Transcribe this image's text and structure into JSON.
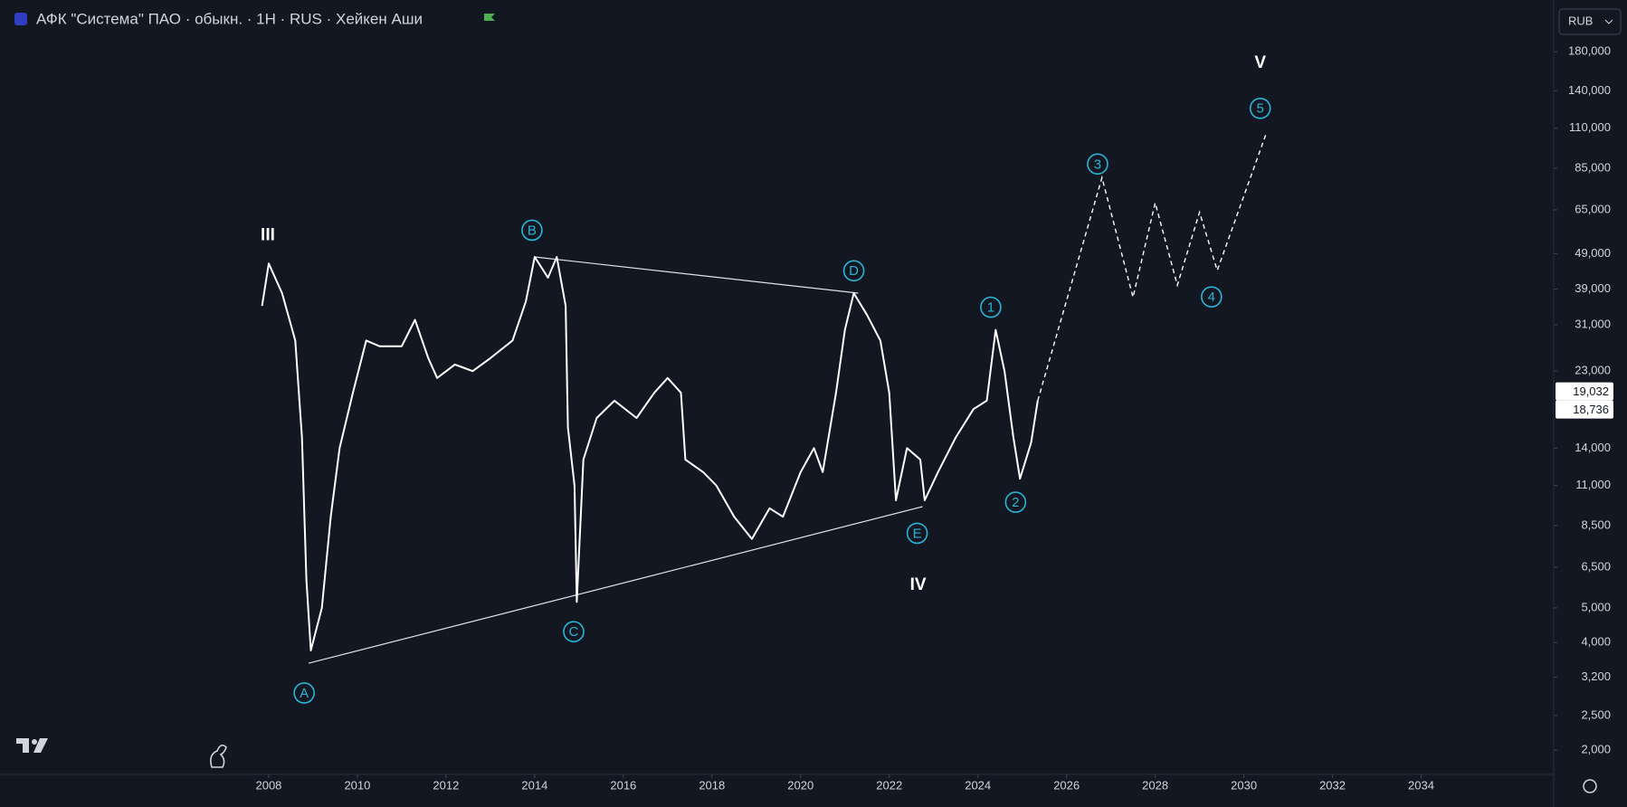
{
  "chart_data": {
    "type": "line",
    "title": "АФК \"Система\" ПАО · обыкн. · 1H · RUS · Хейкен Аши",
    "currency": "RUB",
    "log_scale": true,
    "grid": false,
    "color": "#ffffff",
    "xlim": [
      2002.06,
      2036.97
    ],
    "ylim": [
      1730,
      199000
    ],
    "xticks": [
      2008,
      2010,
      2012,
      2014,
      2016,
      2018,
      2020,
      2022,
      2024,
      2026,
      2028,
      2030,
      2032,
      2034
    ],
    "yticks": [
      {
        "value": 180000,
        "label": "180,000"
      },
      {
        "value": 140000,
        "label": "140,000"
      },
      {
        "value": 110000,
        "label": "110,000"
      },
      {
        "value": 85000,
        "label": "85,000"
      },
      {
        "value": 65000,
        "label": "65,000"
      },
      {
        "value": 49000,
        "label": "49,000"
      },
      {
        "value": 39000,
        "label": "39,000"
      },
      {
        "value": 31000,
        "label": "31,000"
      },
      {
        "value": 23000,
        "label": "23,000"
      },
      {
        "value": 14000,
        "label": "14,000"
      },
      {
        "value": 11000,
        "label": "11,000"
      },
      {
        "value": 8500,
        "label": "8,500"
      },
      {
        "value": 6500,
        "label": "6,500"
      },
      {
        "value": 5000,
        "label": "5,000"
      },
      {
        "value": 4000,
        "label": "4,000"
      },
      {
        "value": 3200,
        "label": "3,200"
      },
      {
        "value": 2500,
        "label": "2,500"
      },
      {
        "value": 2000,
        "label": "2,000"
      }
    ],
    "x": [
      2007.85,
      2008.0,
      2008.3,
      2008.6,
      2008.75,
      2008.85,
      2008.95,
      2009.2,
      2009.4,
      2009.6,
      2009.9,
      2010.2,
      2010.5,
      2011.0,
      2011.3,
      2011.6,
      2011.8,
      2012.2,
      2012.6,
      2013.0,
      2013.5,
      2013.8,
      2014.0,
      2014.3,
      2014.5,
      2014.7,
      2014.75,
      2014.9,
      2014.95,
      2015.1,
      2015.4,
      2015.8,
      2016.3,
      2016.7,
      2017.0,
      2017.3,
      2017.4,
      2017.8,
      2018.1,
      2018.5,
      2018.9,
      2019.3,
      2019.6,
      2020.0,
      2020.3,
      2020.5,
      2020.8,
      2021.0,
      2021.2,
      2021.5,
      2021.8,
      2022.0,
      2022.15,
      2022.4,
      2022.7,
      2022.8,
      2023.1,
      2023.5,
      2023.9,
      2024.2,
      2024.4,
      2024.6,
      2024.8,
      2024.95,
      2025.2,
      2025.35
    ],
    "values": [
      35000,
      46000,
      38000,
      28000,
      15000,
      6000,
      3800,
      5000,
      9000,
      14000,
      20000,
      28000,
      27000,
      27000,
      32000,
      25000,
      22000,
      24000,
      23000,
      25000,
      28000,
      36000,
      48000,
      42000,
      48000,
      35000,
      16000,
      11000,
      5200,
      13000,
      17000,
      19000,
      17000,
      20000,
      22000,
      20000,
      13000,
      12000,
      11000,
      9000,
      7800,
      9500,
      9000,
      12000,
      14000,
      12000,
      20000,
      30000,
      38000,
      33000,
      28000,
      20000,
      10000,
      14000,
      13000,
      10000,
      12000,
      15000,
      18000,
      19000,
      30000,
      23000,
      15000,
      11500,
      14500,
      19000
    ],
    "projection": {
      "x": [
        2025.35,
        2026.8,
        2027.5,
        2028.0,
        2028.5,
        2029.0,
        2029.4,
        2030.5
      ],
      "values": [
        19000,
        80000,
        37000,
        68000,
        40000,
        64000,
        44000,
        106000
      ]
    },
    "trendlines": [
      {
        "x": [
          2008.9,
          2022.75
        ],
        "values": [
          3500,
          9600
        ]
      },
      {
        "x": [
          2014.0,
          2021.3
        ],
        "values": [
          48000,
          38000
        ]
      }
    ],
    "annotations": [
      {
        "text": "III",
        "style": "roman",
        "x": 2007.98,
        "y": 55000
      },
      {
        "text": "IV",
        "style": "roman",
        "x": 2022.65,
        "y": 5790
      },
      {
        "text": "V",
        "style": "roman",
        "x": 2030.37,
        "y": 167000
      },
      {
        "text": "A",
        "style": "circled",
        "x": 2008.8,
        "y": 2890
      },
      {
        "text": "B",
        "style": "circled",
        "x": 2013.94,
        "y": 57000
      },
      {
        "text": "C",
        "style": "circled",
        "x": 2014.88,
        "y": 4290
      },
      {
        "text": "D",
        "style": "circled",
        "x": 2021.2,
        "y": 43900
      },
      {
        "text": "E",
        "style": "circled",
        "x": 2022.63,
        "y": 8090
      },
      {
        "text": "1",
        "style": "circled",
        "x": 2024.29,
        "y": 34700
      },
      {
        "text": "2",
        "style": "circled",
        "x": 2024.85,
        "y": 9880
      },
      {
        "text": "3",
        "style": "circled",
        "x": 2026.7,
        "y": 87300
      },
      {
        "text": "4",
        "style": "circled",
        "x": 2029.27,
        "y": 37100
      },
      {
        "text": "5",
        "style": "circled",
        "x": 2030.37,
        "y": 125000
      }
    ],
    "price_labels": [
      {
        "value": 19032,
        "label": "19,032"
      },
      {
        "value": 18736,
        "label": "18,736"
      }
    ]
  }
}
